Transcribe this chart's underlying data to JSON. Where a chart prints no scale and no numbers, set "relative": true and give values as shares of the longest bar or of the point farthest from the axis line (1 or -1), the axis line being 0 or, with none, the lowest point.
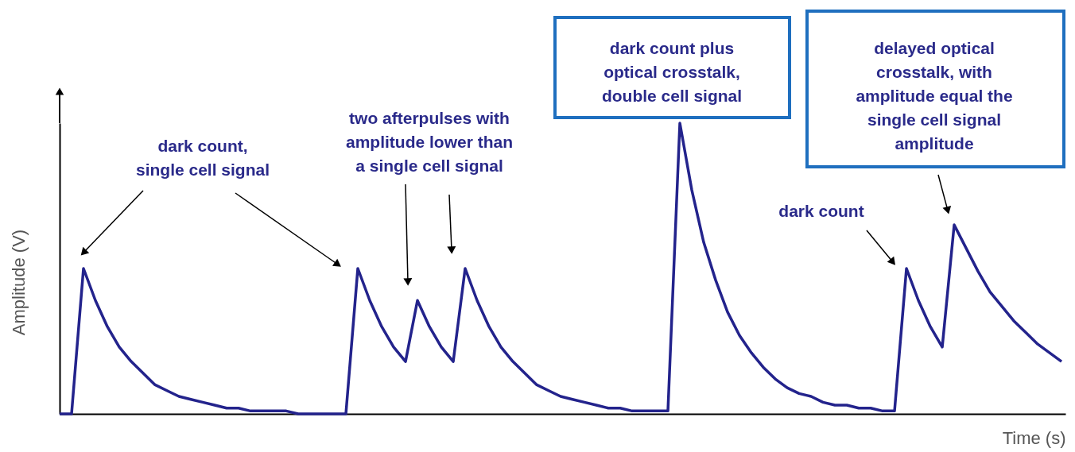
{
  "chart_data": {
    "type": "line",
    "relative": true,
    "tick_labels": false,
    "grid": false,
    "xlabel": "Time (s)",
    "ylabel": "Amplitude (V)",
    "color": "#23238c",
    "categories": [
      null,
      null,
      null,
      null,
      null,
      null,
      null,
      null,
      null,
      null,
      null,
      null,
      null,
      null,
      null,
      null,
      null,
      null,
      null,
      null,
      null,
      null,
      null,
      null,
      null,
      null,
      null,
      null,
      null,
      null,
      null,
      null,
      null,
      null,
      null,
      null,
      null,
      null,
      null,
      null,
      null,
      null,
      null,
      null,
      null,
      null,
      null,
      null,
      null,
      null,
      null,
      null,
      null,
      null,
      null,
      null,
      null,
      null,
      null,
      null,
      null,
      null,
      null,
      null,
      null,
      null,
      null,
      null,
      null,
      null,
      null,
      null,
      null,
      null,
      null,
      null,
      null,
      null,
      null,
      null,
      null,
      null,
      null,
      null,
      null
    ],
    "values": [
      0,
      0,
      0.5,
      0.39,
      0.3,
      0.23,
      0.18,
      0.14,
      0.1,
      0.08,
      0.06,
      0.05,
      0.04,
      0.03,
      0.02,
      0.02,
      0.01,
      0.01,
      0.01,
      0.01,
      0,
      0,
      0,
      0,
      0,
      0.5,
      0.39,
      0.3,
      0.23,
      0.18,
      0.39,
      0.3,
      0.23,
      0.18,
      0.5,
      0.39,
      0.3,
      0.23,
      0.18,
      0.14,
      0.1,
      0.08,
      0.06,
      0.05,
      0.04,
      0.03,
      0.02,
      0.02,
      0.01,
      0.01,
      0.01,
      0.01,
      1.0,
      0.77,
      0.59,
      0.46,
      0.35,
      0.27,
      0.21,
      0.16,
      0.12,
      0.09,
      0.07,
      0.06,
      0.04,
      0.03,
      0.03,
      0.02,
      0.02,
      0.01,
      0.01,
      0.5,
      0.39,
      0.3,
      0.23,
      0.65,
      0.57,
      0.49,
      0.42,
      0.37,
      0.32,
      0.28,
      0.24,
      0.21,
      0.18
    ],
    "annotations": [
      "dark count,\nsingle cell signal",
      "two afterpulses with\namplitude lower than\na single cell signal",
      "dark count plus\noptical crosstalk,\ndouble cell signal",
      "dark count",
      "delayed optical\ncrosstalk,  with\namplitude equal the\nsingle cell signal\namplitude"
    ]
  }
}
